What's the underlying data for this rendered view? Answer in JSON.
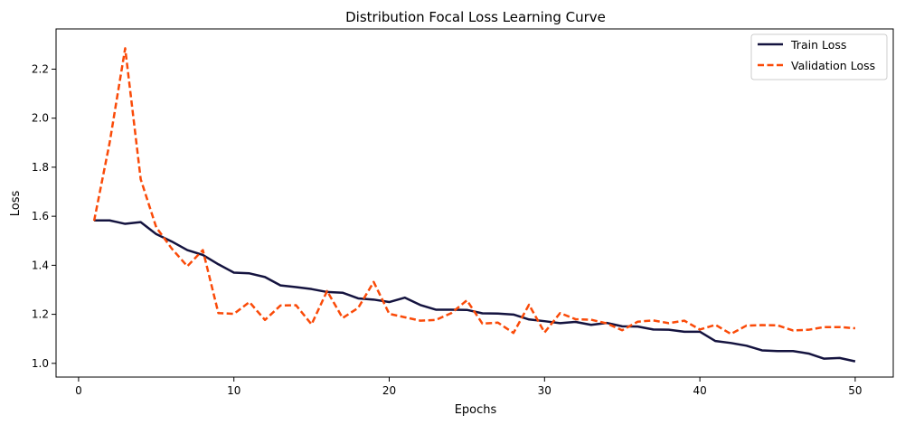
{
  "chart_data": {
    "type": "line",
    "title": "Distribution Focal Loss Learning Curve",
    "xlabel": "Epochs",
    "ylabel": "Loss",
    "xlim": [
      -1.45,
      52.45
    ],
    "ylim": [
      0.944,
      2.364
    ],
    "xticks": [
      0,
      10,
      20,
      30,
      40,
      50
    ],
    "xtick_labels": [
      "0",
      "10",
      "20",
      "30",
      "40",
      "50"
    ],
    "yticks": [
      1.0,
      1.2,
      1.4,
      1.6,
      1.8,
      2.0,
      2.2
    ],
    "ytick_labels": [
      "1.0",
      "1.2",
      "1.4",
      "1.6",
      "1.8",
      "2.0",
      "2.2"
    ],
    "grid": false,
    "legend_position": "upper right",
    "x": [
      1,
      2,
      3,
      4,
      5,
      6,
      7,
      8,
      9,
      10,
      11,
      12,
      13,
      14,
      15,
      16,
      17,
      18,
      19,
      20,
      21,
      22,
      23,
      24,
      25,
      26,
      27,
      28,
      29,
      30,
      31,
      32,
      33,
      34,
      35,
      36,
      37,
      38,
      39,
      40,
      41,
      42,
      43,
      44,
      45,
      46,
      47,
      48,
      49,
      50
    ],
    "series": [
      {
        "name": "Train Loss",
        "color": "#14133f",
        "style": "solid",
        "values": [
          1.583,
          1.583,
          1.569,
          1.576,
          1.527,
          1.497,
          1.462,
          1.442,
          1.404,
          1.37,
          1.367,
          1.352,
          1.318,
          1.311,
          1.303,
          1.291,
          1.288,
          1.265,
          1.26,
          1.25,
          1.268,
          1.238,
          1.219,
          1.219,
          1.218,
          1.204,
          1.203,
          1.199,
          1.179,
          1.172,
          1.164,
          1.169,
          1.157,
          1.165,
          1.151,
          1.15,
          1.138,
          1.137,
          1.129,
          1.129,
          1.091,
          1.083,
          1.072,
          1.053,
          1.05,
          1.05,
          1.04,
          1.019,
          1.022,
          1.008
        ]
      },
      {
        "name": "Validation Loss",
        "color": "#fa4a08",
        "style": "dashed",
        "values": [
          1.581,
          1.9,
          2.285,
          1.751,
          1.555,
          1.468,
          1.396,
          1.462,
          1.205,
          1.202,
          1.25,
          1.177,
          1.236,
          1.237,
          1.159,
          1.295,
          1.185,
          1.226,
          1.332,
          1.202,
          1.188,
          1.174,
          1.177,
          1.205,
          1.257,
          1.162,
          1.166,
          1.124,
          1.239,
          1.126,
          1.205,
          1.18,
          1.178,
          1.163,
          1.135,
          1.17,
          1.175,
          1.164,
          1.174,
          1.138,
          1.157,
          1.12,
          1.154,
          1.156,
          1.155,
          1.134,
          1.137,
          1.148,
          1.148,
          1.143
        ]
      }
    ]
  }
}
